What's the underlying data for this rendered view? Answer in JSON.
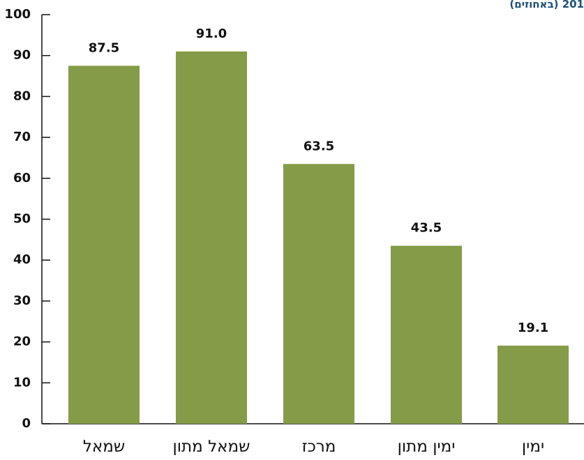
{
  "header": {
    "subtitle": "201 (באחוזים)"
  },
  "chart_data": {
    "type": "bar",
    "title": "",
    "xlabel": "",
    "ylabel": "",
    "categories": [
      "שמאל",
      "שמאל מתון",
      "מרכז",
      "ימין מתון",
      "ימין"
    ],
    "values": [
      87.5,
      91.0,
      63.5,
      43.5,
      19.1
    ],
    "value_labels": [
      "87.5",
      "91.0",
      "63.5",
      "43.5",
      "19.1"
    ],
    "ylim": [
      0,
      100
    ],
    "yticks": [
      0,
      10,
      20,
      30,
      40,
      50,
      60,
      70,
      80,
      90,
      100
    ],
    "grid": false,
    "legend": "none",
    "bar_color": "#849c48",
    "axis_color": "#111111"
  }
}
